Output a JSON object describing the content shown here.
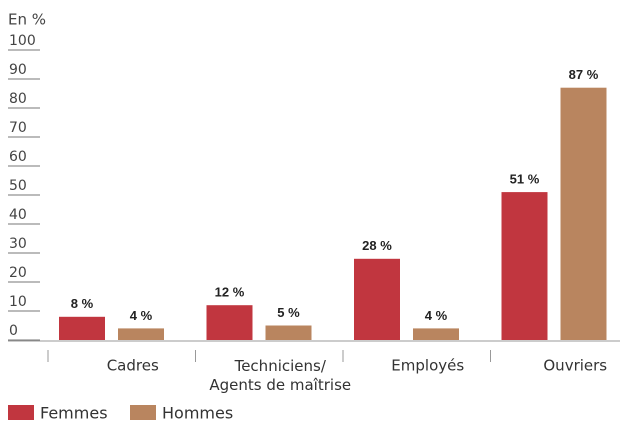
{
  "chart_data": {
    "type": "bar",
    "y_label": "En %",
    "categories": [
      "Cadres",
      "Techniciens/\nAgents de maîtrise",
      "Employés",
      "Ouvriers"
    ],
    "series": [
      {
        "name": "Femmes",
        "color": "#c1363f",
        "values": [
          8,
          12,
          28,
          51
        ],
        "value_labels": [
          "8 %",
          "12 %",
          "28 %",
          "51 %"
        ]
      },
      {
        "name": "Hommes",
        "color": "#b9855f",
        "values": [
          4,
          5,
          4,
          87
        ],
        "value_labels": [
          "4 %",
          "5 %",
          "4 %",
          "87 %"
        ]
      }
    ],
    "ylim": [
      0,
      100
    ],
    "yticks": [
      0,
      10,
      20,
      30,
      40,
      50,
      60,
      70,
      80,
      90,
      100
    ],
    "grid": true
  }
}
